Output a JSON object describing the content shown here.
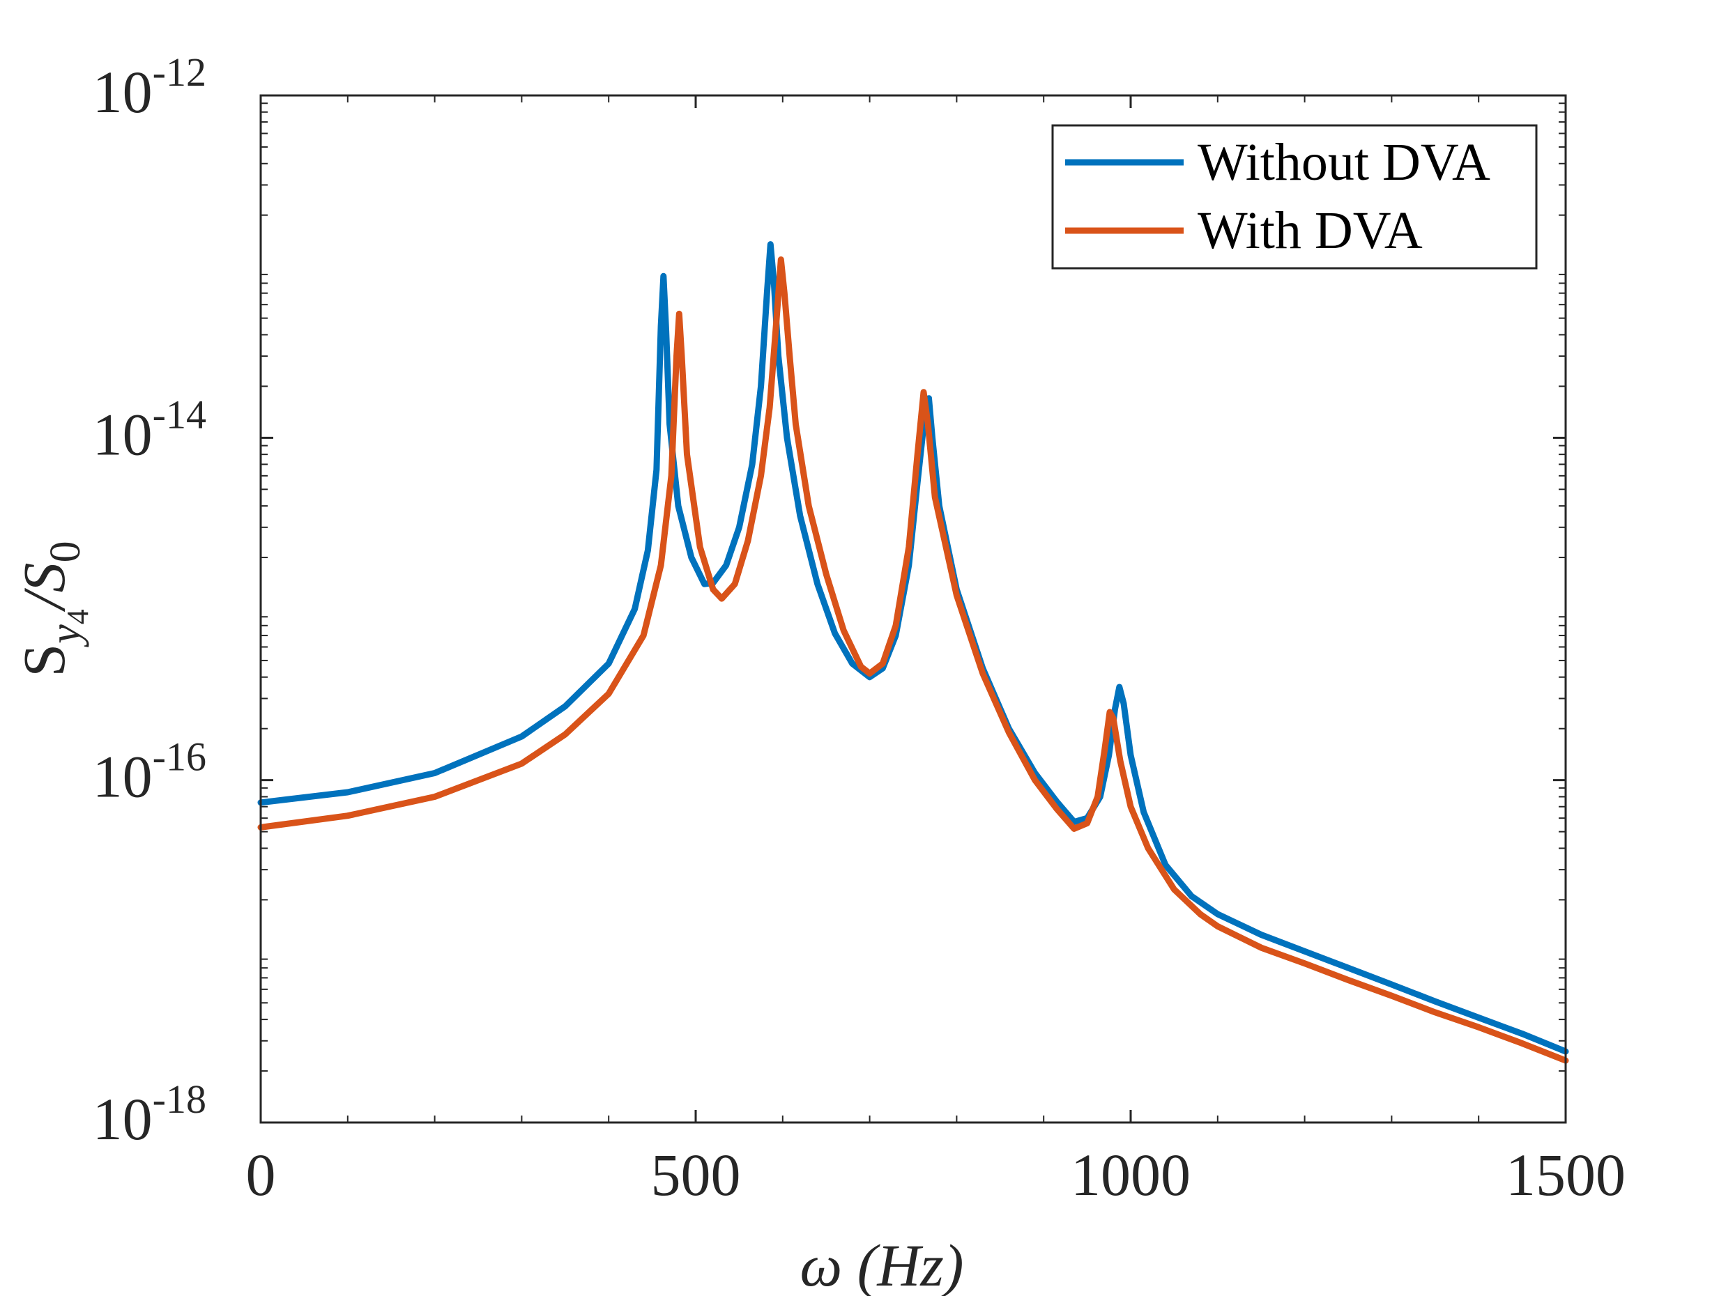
{
  "chart_data": {
    "type": "line",
    "xlabel": "ω (Hz)",
    "ylabel": "S_y4/S_0",
    "ylabel_parts": {
      "main": "S",
      "sub_var": "y",
      "sub_num": "4",
      "slash": "/S",
      "denom_sub": "0"
    },
    "xlim": [
      0,
      1500
    ],
    "ylim": [
      1e-18,
      1e-12
    ],
    "yscale": "log",
    "grid": false,
    "legend_position": "top-right",
    "x_ticks": [
      "0",
      "500",
      "1000",
      "1500"
    ],
    "y_ticks": [
      {
        "value": 1e-18,
        "base": "10",
        "exp": "-18"
      },
      {
        "value": 1e-16,
        "base": "10",
        "exp": "-16"
      },
      {
        "value": 1e-14,
        "base": "10",
        "exp": "-14"
      },
      {
        "value": 1e-12,
        "base": "10",
        "exp": "-12"
      }
    ],
    "series": [
      {
        "name": "Without DVA",
        "color": "#0072BD",
        "points": [
          [
            0,
            7.4e-17
          ],
          [
            100,
            8.5e-17
          ],
          [
            200,
            1.1e-16
          ],
          [
            300,
            1.8e-16
          ],
          [
            350,
            2.7e-16
          ],
          [
            400,
            4.8e-16
          ],
          [
            430,
            1e-15
          ],
          [
            445,
            2.2e-15
          ],
          [
            455,
            6.5e-15
          ],
          [
            460,
            4.5e-14
          ],
          [
            463,
            8.8e-14
          ],
          [
            466,
            4.2e-14
          ],
          [
            470,
            1.2e-14
          ],
          [
            480,
            4e-15
          ],
          [
            495,
            2e-15
          ],
          [
            510,
            1.4e-15
          ],
          [
            520,
            1.42e-15
          ],
          [
            535,
            1.8e-15
          ],
          [
            550,
            3e-15
          ],
          [
            565,
            7e-15
          ],
          [
            575,
            2e-14
          ],
          [
            582,
            7e-14
          ],
          [
            586,
            1.35e-13
          ],
          [
            590,
            8e-14
          ],
          [
            595,
            3e-14
          ],
          [
            605,
            1e-14
          ],
          [
            620,
            3.5e-15
          ],
          [
            640,
            1.4e-15
          ],
          [
            660,
            7.2e-16
          ],
          [
            680,
            4.8e-16
          ],
          [
            700,
            4e-16
          ],
          [
            715,
            4.5e-16
          ],
          [
            730,
            7e-16
          ],
          [
            745,
            1.8e-15
          ],
          [
            755,
            5.5e-15
          ],
          [
            763,
            1.3e-14
          ],
          [
            768,
            1.7e-14
          ],
          [
            772,
            1e-14
          ],
          [
            780,
            4e-15
          ],
          [
            800,
            1.3e-15
          ],
          [
            830,
            4.5e-16
          ],
          [
            860,
            2e-16
          ],
          [
            890,
            1.1e-16
          ],
          [
            915,
            7.5e-17
          ],
          [
            935,
            5.7e-17
          ],
          [
            950,
            6e-17
          ],
          [
            965,
            8e-17
          ],
          [
            975,
            1.4e-16
          ],
          [
            982,
            2.6e-16
          ],
          [
            987,
            3.5e-16
          ],
          [
            992,
            2.8e-16
          ],
          [
            1000,
            1.4e-16
          ],
          [
            1015,
            6.5e-17
          ],
          [
            1040,
            3.2e-17
          ],
          [
            1070,
            2.1e-17
          ],
          [
            1100,
            1.65e-17
          ],
          [
            1150,
            1.25e-17
          ],
          [
            1200,
            1e-17
          ],
          [
            1250,
            8e-18
          ],
          [
            1300,
            6.4e-18
          ],
          [
            1350,
            5.1e-18
          ],
          [
            1400,
            4.1e-18
          ],
          [
            1450,
            3.3e-18
          ],
          [
            1500,
            2.6e-18
          ]
        ]
      },
      {
        "name": "With DVA",
        "color": "#D95319",
        "points": [
          [
            0,
            5.3e-17
          ],
          [
            100,
            6.2e-17
          ],
          [
            200,
            8e-17
          ],
          [
            300,
            1.25e-16
          ],
          [
            350,
            1.85e-16
          ],
          [
            400,
            3.2e-16
          ],
          [
            440,
            7e-16
          ],
          [
            460,
            1.8e-15
          ],
          [
            472,
            6e-15
          ],
          [
            478,
            3e-14
          ],
          [
            481,
            5.3e-14
          ],
          [
            484,
            3e-14
          ],
          [
            490,
            8e-15
          ],
          [
            505,
            2.3e-15
          ],
          [
            520,
            1.3e-15
          ],
          [
            530,
            1.15e-15
          ],
          [
            545,
            1.4e-15
          ],
          [
            560,
            2.5e-15
          ],
          [
            575,
            6e-15
          ],
          [
            585,
            1.5e-14
          ],
          [
            593,
            5e-14
          ],
          [
            598,
            1.1e-13
          ],
          [
            602,
            7e-14
          ],
          [
            608,
            3e-14
          ],
          [
            615,
            1.2e-14
          ],
          [
            630,
            4e-15
          ],
          [
            650,
            1.6e-15
          ],
          [
            670,
            7.5e-16
          ],
          [
            690,
            4.6e-16
          ],
          [
            700,
            4.2e-16
          ],
          [
            715,
            4.8e-16
          ],
          [
            730,
            8e-16
          ],
          [
            745,
            2.3e-15
          ],
          [
            755,
            8e-15
          ],
          [
            762,
            1.85e-14
          ],
          [
            767,
            1.2e-14
          ],
          [
            775,
            4.5e-15
          ],
          [
            800,
            1.2e-15
          ],
          [
            830,
            4.2e-16
          ],
          [
            860,
            1.9e-16
          ],
          [
            890,
            1e-16
          ],
          [
            915,
            6.8e-17
          ],
          [
            935,
            5.2e-17
          ],
          [
            950,
            5.6e-17
          ],
          [
            962,
            8e-17
          ],
          [
            970,
            1.5e-16
          ],
          [
            976,
            2.5e-16
          ],
          [
            980,
            2.3e-16
          ],
          [
            988,
            1.3e-16
          ],
          [
            1000,
            7e-17
          ],
          [
            1020,
            4e-17
          ],
          [
            1050,
            2.3e-17
          ],
          [
            1080,
            1.65e-17
          ],
          [
            1100,
            1.4e-17
          ],
          [
            1150,
            1.05e-17
          ],
          [
            1200,
            8.5e-18
          ],
          [
            1250,
            6.8e-18
          ],
          [
            1300,
            5.5e-18
          ],
          [
            1350,
            4.4e-18
          ],
          [
            1400,
            3.6e-18
          ],
          [
            1450,
            2.9e-18
          ],
          [
            1500,
            2.3e-18
          ]
        ]
      }
    ]
  }
}
